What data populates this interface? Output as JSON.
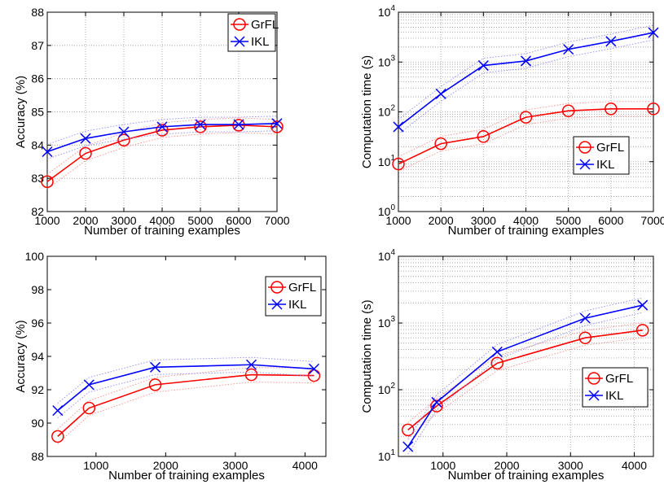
{
  "chart_data": [
    {
      "type": "line",
      "xlabel": "Number of training examples",
      "ylabel": "Accuracy (%)",
      "xlim": [
        1000,
        7000
      ],
      "ylim": [
        82,
        88
      ],
      "xticks": [
        1000,
        2000,
        3000,
        4000,
        5000,
        6000,
        7000
      ],
      "yticks": [
        82,
        83,
        84,
        85,
        86,
        87,
        88
      ],
      "grid": true,
      "legend_position": "top-right",
      "series": [
        {
          "name": "GrFL",
          "color": "#ff0000",
          "marker": "circle",
          "x": [
            1000,
            2000,
            3000,
            4000,
            5000,
            6000,
            7000
          ],
          "y": [
            82.9,
            83.75,
            84.15,
            84.45,
            84.55,
            84.6,
            84.55
          ]
        },
        {
          "name": "IKL",
          "color": "#0000ff",
          "marker": "x",
          "x": [
            1000,
            2000,
            3000,
            4000,
            5000,
            6000,
            7000
          ],
          "y": [
            83.8,
            84.2,
            84.4,
            84.55,
            84.62,
            84.62,
            84.65
          ]
        }
      ]
    },
    {
      "type": "line",
      "xlabel": "Number of training examples",
      "ylabel": "Computation time (s)",
      "xlim": [
        1000,
        7000
      ],
      "ylim": [
        1,
        10000
      ],
      "yscale": "log",
      "xticks": [
        1000,
        2000,
        3000,
        4000,
        5000,
        6000,
        7000
      ],
      "yticks": [
        1,
        10,
        100,
        1000,
        10000
      ],
      "grid": true,
      "legend_position": "lower-right",
      "series": [
        {
          "name": "GrFL",
          "color": "#ff0000",
          "marker": "circle",
          "x": [
            1000,
            2000,
            3000,
            4000,
            5000,
            6000,
            7000
          ],
          "y": [
            9,
            23,
            32,
            78,
            105,
            115,
            115
          ]
        },
        {
          "name": "IKL",
          "color": "#0000ff",
          "marker": "x",
          "x": [
            1000,
            2000,
            3000,
            4000,
            5000,
            6000,
            7000
          ],
          "y": [
            50,
            230,
            850,
            1050,
            1800,
            2600,
            3900
          ]
        }
      ]
    },
    {
      "type": "line",
      "xlabel": "Number of training examples",
      "ylabel": "Accuracy (%)",
      "xlim": [
        300,
        4300
      ],
      "ylim": [
        88,
        100
      ],
      "xticks": [
        1000,
        2000,
        3000,
        4000
      ],
      "yticks": [
        88,
        90,
        92,
        94,
        96,
        98,
        100
      ],
      "grid": false,
      "legend_position": "top-right",
      "series": [
        {
          "name": "GrFL",
          "color": "#ff0000",
          "marker": "circle",
          "x": [
            450,
            900,
            1850,
            3230,
            4130
          ],
          "y": [
            89.2,
            90.9,
            92.3,
            92.9,
            92.85
          ]
        },
        {
          "name": "IKL",
          "color": "#0000ff",
          "marker": "x",
          "x": [
            450,
            900,
            1850,
            3230,
            4130
          ],
          "y": [
            90.75,
            92.3,
            93.35,
            93.5,
            93.25
          ]
        }
      ]
    },
    {
      "type": "line",
      "xlabel": "Number of training examples",
      "ylabel": "Computation time (s)",
      "xlim": [
        300,
        4300
      ],
      "ylim": [
        10,
        10000
      ],
      "yscale": "log",
      "xticks": [
        1000,
        2000,
        3000,
        4000
      ],
      "yticks": [
        10,
        100,
        1000,
        10000
      ],
      "grid": true,
      "legend_position": "lower-right",
      "series": [
        {
          "name": "GrFL",
          "color": "#ff0000",
          "marker": "circle",
          "x": [
            450,
            900,
            1850,
            3230,
            4130
          ],
          "y": [
            25,
            57,
            250,
            600,
            780
          ]
        },
        {
          "name": "IKL",
          "color": "#0000ff",
          "marker": "x",
          "x": [
            450,
            900,
            1850,
            3230,
            4130
          ],
          "y": [
            14,
            65,
            370,
            1180,
            1850
          ]
        }
      ]
    }
  ]
}
